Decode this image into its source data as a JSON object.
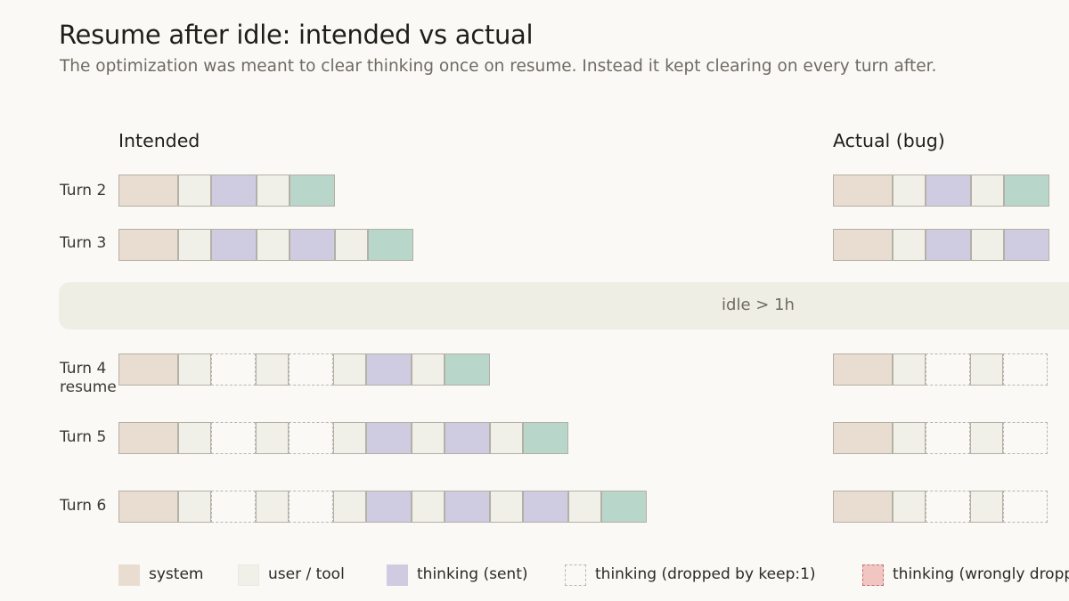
{
  "header": {
    "title": "Resume after idle: intended vs actual",
    "subtitle": "The optimization was meant to clear thinking once on resume. Instead it kept clearing on every turn after."
  },
  "panels": {
    "intended": "Intended",
    "actual": "Actual (bug)"
  },
  "idle_label": "idle > 1h",
  "rows": [
    {
      "label": "Turn 2"
    },
    {
      "label": "Turn 3"
    },
    {
      "label": "Turn 4",
      "sublabel": "resume"
    },
    {
      "label": "Turn 5"
    },
    {
      "label": "Turn 6"
    }
  ],
  "block_types": [
    "system",
    "user",
    "thinking",
    "response",
    "dropped",
    "wrong"
  ],
  "intended_blocks": [
    [
      "system",
      "user",
      "thinking",
      "user",
      "response"
    ],
    [
      "system",
      "user",
      "thinking",
      "user",
      "thinking",
      "user",
      "response"
    ],
    [
      "system",
      "user",
      "dropped",
      "user",
      "dropped",
      "user",
      "thinking",
      "user",
      "response"
    ],
    [
      "system",
      "user",
      "dropped",
      "user",
      "dropped",
      "user",
      "thinking",
      "user",
      "thinking",
      "user",
      "response"
    ],
    [
      "system",
      "user",
      "dropped",
      "user",
      "dropped",
      "user",
      "thinking",
      "user",
      "thinking",
      "user",
      "thinking",
      "user",
      "response"
    ]
  ],
  "actual_blocks": [
    [
      "system",
      "user",
      "thinking",
      "user",
      "response"
    ],
    [
      "system",
      "user",
      "thinking",
      "user",
      "thinking"
    ],
    [
      "system",
      "user",
      "dropped",
      "user",
      "dropped"
    ],
    [
      "system",
      "user",
      "dropped",
      "user",
      "dropped"
    ],
    [
      "system",
      "user",
      "dropped",
      "user",
      "dropped"
    ]
  ],
  "legend": [
    {
      "key": "system",
      "label": "system"
    },
    {
      "key": "user",
      "label": "user / tool"
    },
    {
      "key": "thinking",
      "label": "thinking (sent)"
    },
    {
      "key": "dropped",
      "label": "thinking (dropped by keep:1)"
    },
    {
      "key": "wrong",
      "label": "thinking (wrongly dropped)"
    }
  ],
  "colors": {
    "background": "#faf9f5",
    "system": "#e8ddd0",
    "user": "#f1f0e8",
    "thinking": "#cfcbe1",
    "response": "#b9d6ca",
    "dropped_border": "#b9b6ac",
    "wrong": "#f1c5c2",
    "wrong_border": "#c76d68",
    "idle_band": "#efeee5"
  }
}
